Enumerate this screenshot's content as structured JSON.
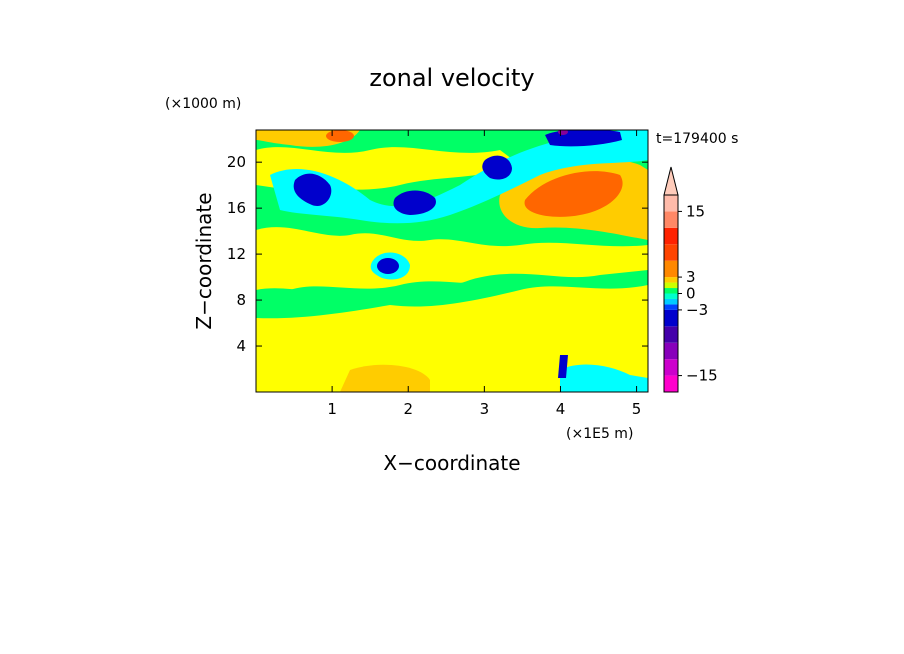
{
  "chart_data": {
    "type": "heatmap",
    "title": "zonal velocity",
    "xlabel": "X−coordinate",
    "ylabel": "Z−coordinate",
    "x_unit": "(×1E5 m)",
    "y_unit": "(×1000 m)",
    "time_label": "t=179400 s",
    "xlim": [
      0,
      5.15
    ],
    "ylim": [
      0,
      22.8
    ],
    "x_ticks": [
      "1",
      "2",
      "3",
      "4",
      "5"
    ],
    "x_tick_values": [
      1,
      2,
      3,
      4,
      5
    ],
    "y_ticks": [
      "4",
      "8",
      "12",
      "16",
      "20"
    ],
    "y_tick_values": [
      4,
      8,
      12,
      16,
      20
    ],
    "colorbar": {
      "levels": [
        -18,
        -15,
        -12,
        -9,
        -6,
        -3,
        -2,
        -1,
        0,
        1,
        2,
        3,
        6,
        9,
        12,
        15,
        18
      ],
      "colors": [
        "#ff00cc",
        "#cc00cc",
        "#8800bb",
        "#4400aa",
        "#0000cc",
        "#0044ff",
        "#00ccff",
        "#00ffcc",
        "#00ff66",
        "#ccff00",
        "#ffcc00",
        "#ff8800",
        "#ff4400",
        "#ff2200",
        "#ff8866",
        "#ffbbaa",
        "#ffccbb"
      ],
      "labels": [
        "15",
        "3",
        "0",
        "−3",
        "−15"
      ],
      "label_values": [
        15,
        3,
        0,
        -3,
        -15
      ],
      "extend": "max"
    },
    "field_palette": {
      "yellow": "#ffff00",
      "green": "#00ff66",
      "cyan": "#00ffff",
      "blue": "#0000cc",
      "orange": "#ffcc00",
      "orange_dark": "#ff9900",
      "red": "#ff4400",
      "purple": "#880099"
    }
  }
}
